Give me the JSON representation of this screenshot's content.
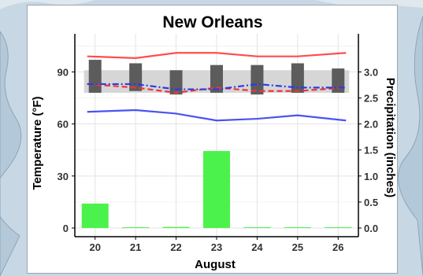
{
  "colors": {
    "max_temp": "#ff4d4d",
    "min_temp": "#4b52f2",
    "dashed_red": "#f0343a",
    "dashdot_blue": "#2a3be8",
    "precip_bar": "#4cf24c",
    "range_bar": "#5c5c5c",
    "normal_band": "#d6d6d6"
  },
  "chart_data": {
    "type": "bar",
    "title": "New Orleans",
    "xlabel": "August",
    "ylabel_left": "Temperature (°F)",
    "ylabel_right": "Precipitation (inches)",
    "x": [
      "20",
      "21",
      "22",
      "23",
      "24",
      "25",
      "26"
    ],
    "ylim_left": [
      -5,
      112
    ],
    "yticks_left": [
      "0",
      "30",
      "60",
      "90"
    ],
    "yticks_right": [
      "0.0",
      "0.5",
      "1.0",
      "1.5",
      "2.0",
      "2.5",
      "3.0"
    ],
    "grid": true,
    "normal_band": {
      "low": 78,
      "high": 91
    },
    "series": [
      {
        "kind": "line",
        "style": "solid",
        "color_key": "max_temp",
        "values": [
          99,
          98,
          101,
          101,
          99,
          99,
          101
        ]
      },
      {
        "kind": "line",
        "style": "solid",
        "color_key": "min_temp",
        "values": [
          67,
          68,
          66,
          62,
          63,
          65,
          62
        ]
      },
      {
        "kind": "line",
        "style": "dashed",
        "color_key": "dashed_red",
        "values": [
          83,
          81,
          78,
          81,
          79,
          79,
          81
        ]
      },
      {
        "kind": "line",
        "style": "dashdot",
        "color_key": "dashdot_blue",
        "values": [
          83,
          83,
          80,
          80,
          83,
          81,
          81
        ]
      },
      {
        "kind": "range-bar",
        "color_key": "range_bar",
        "low": [
          78,
          79,
          77,
          78,
          77,
          78,
          78
        ],
        "high": [
          97,
          95,
          91,
          94,
          94,
          95,
          92
        ]
      },
      {
        "kind": "bar",
        "axis": "right",
        "color_key": "precip_bar",
        "values": [
          0.47,
          0,
          0.02,
          1.48,
          0,
          0,
          0
        ]
      }
    ]
  }
}
